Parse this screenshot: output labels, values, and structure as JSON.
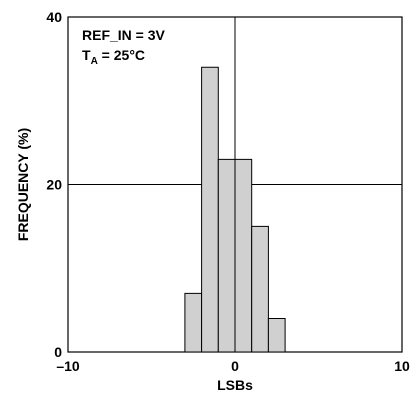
{
  "chart_data": {
    "type": "bar",
    "title": "",
    "xlabel": "LSBs",
    "ylabel": "FREQUENCY (%)",
    "xlim": [
      -10,
      10
    ],
    "ylim": [
      0,
      40
    ],
    "x_ticks": [
      "–10",
      "0",
      "10"
    ],
    "y_ticks": [
      "0",
      "20",
      "40"
    ],
    "bin_width": 1,
    "bins": [
      {
        "x": -2.5,
        "value": 7
      },
      {
        "x": -1.5,
        "value": 34
      },
      {
        "x": -0.5,
        "value": 23
      },
      {
        "x": 0.5,
        "value": 23
      },
      {
        "x": 1.5,
        "value": 15
      },
      {
        "x": 2.5,
        "value": 4
      }
    ],
    "annotations": {
      "line1": "REF_IN = 3V",
      "line2_main": "T",
      "line2_sub": "A",
      "line2_rest": " = 25°C"
    },
    "grid": "center cross lines at x=0 and y=20",
    "colors": {
      "bar_fill": "#d0d0d0",
      "bar_stroke": "#000000",
      "axis": "#000000"
    }
  }
}
